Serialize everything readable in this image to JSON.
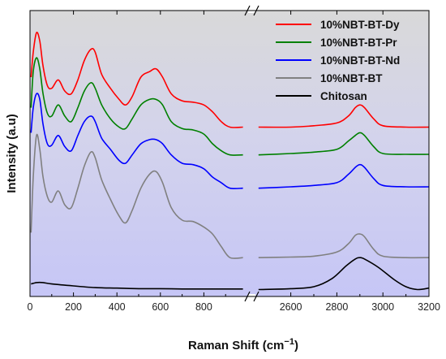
{
  "chart_data": {
    "type": "line",
    "xlabel": "Raman Shift (cm",
    "xlabel_exp": "−1",
    "xlabel_close": ")",
    "ylabel": "Intensity (a.u)",
    "x_break": "//",
    "xlim_left": [
      0,
      1000
    ],
    "xlim_right": [
      2450,
      3200
    ],
    "xticks_left": [
      "0",
      "200",
      "400",
      "600",
      "800"
    ],
    "xtick_values_left": [
      0,
      200,
      400,
      600,
      800
    ],
    "xticks_right": [
      "2600",
      "2800",
      "3000",
      "3200"
    ],
    "xtick_values_right": [
      2600,
      2800,
      3000,
      3200
    ],
    "ylim": [
      -0.3,
      10
    ],
    "y_tick_labels": "none",
    "legend_position": "top-right",
    "series": [
      {
        "name": "10%NBT-BT-Dy",
        "color": "#ff0000",
        "left": [
          [
            5,
            7.6
          ],
          [
            15,
            8.5
          ],
          [
            30,
            9.2
          ],
          [
            45,
            8.9
          ],
          [
            60,
            8.0
          ],
          [
            80,
            7.3
          ],
          [
            100,
            7.2
          ],
          [
            130,
            7.5
          ],
          [
            160,
            7.1
          ],
          [
            190,
            7.0
          ],
          [
            220,
            7.5
          ],
          [
            250,
            8.2
          ],
          [
            280,
            8.6
          ],
          [
            300,
            8.5
          ],
          [
            330,
            7.7
          ],
          [
            370,
            7.2
          ],
          [
            410,
            6.8
          ],
          [
            440,
            6.6
          ],
          [
            470,
            6.9
          ],
          [
            510,
            7.6
          ],
          [
            550,
            7.8
          ],
          [
            580,
            7.9
          ],
          [
            610,
            7.6
          ],
          [
            650,
            7.0
          ],
          [
            700,
            6.75
          ],
          [
            750,
            6.7
          ],
          [
            800,
            6.6
          ],
          [
            840,
            6.35
          ],
          [
            880,
            6.0
          ],
          [
            920,
            5.8
          ],
          [
            980,
            5.8
          ]
        ],
        "right": [
          [
            2460,
            5.8
          ],
          [
            2600,
            5.8
          ],
          [
            2700,
            5.85
          ],
          [
            2800,
            5.95
          ],
          [
            2850,
            6.2
          ],
          [
            2880,
            6.5
          ],
          [
            2900,
            6.6
          ],
          [
            2920,
            6.5
          ],
          [
            2960,
            6.1
          ],
          [
            3000,
            5.85
          ],
          [
            3100,
            5.8
          ],
          [
            3200,
            5.8
          ]
        ]
      },
      {
        "name": "10%NBT-BT-Pr",
        "color": "#008000",
        "left": [
          [
            5,
            6.5
          ],
          [
            15,
            7.8
          ],
          [
            30,
            8.3
          ],
          [
            45,
            7.9
          ],
          [
            60,
            7.0
          ],
          [
            80,
            6.3
          ],
          [
            100,
            6.2
          ],
          [
            130,
            6.6
          ],
          [
            160,
            6.2
          ],
          [
            190,
            6.0
          ],
          [
            220,
            6.5
          ],
          [
            250,
            7.1
          ],
          [
            280,
            7.4
          ],
          [
            300,
            7.2
          ],
          [
            330,
            6.6
          ],
          [
            370,
            6.1
          ],
          [
            410,
            5.8
          ],
          [
            440,
            5.75
          ],
          [
            470,
            6.1
          ],
          [
            510,
            6.6
          ],
          [
            550,
            6.8
          ],
          [
            580,
            6.8
          ],
          [
            610,
            6.6
          ],
          [
            650,
            6.0
          ],
          [
            700,
            5.75
          ],
          [
            750,
            5.7
          ],
          [
            800,
            5.55
          ],
          [
            840,
            5.2
          ],
          [
            880,
            4.95
          ],
          [
            920,
            4.8
          ],
          [
            980,
            4.8
          ]
        ],
        "right": [
          [
            2460,
            4.8
          ],
          [
            2600,
            4.85
          ],
          [
            2700,
            4.9
          ],
          [
            2800,
            5.0
          ],
          [
            2850,
            5.3
          ],
          [
            2880,
            5.5
          ],
          [
            2900,
            5.6
          ],
          [
            2920,
            5.5
          ],
          [
            2960,
            5.1
          ],
          [
            3000,
            4.85
          ],
          [
            3100,
            4.82
          ],
          [
            3200,
            4.82
          ]
        ]
      },
      {
        "name": "10%NBT-BT-Nd",
        "color": "#0000ff",
        "left": [
          [
            5,
            5.6
          ],
          [
            15,
            6.5
          ],
          [
            30,
            7.0
          ],
          [
            45,
            6.8
          ],
          [
            60,
            5.9
          ],
          [
            80,
            5.2
          ],
          [
            100,
            5.15
          ],
          [
            130,
            5.5
          ],
          [
            160,
            5.1
          ],
          [
            190,
            4.95
          ],
          [
            220,
            5.5
          ],
          [
            250,
            6.0
          ],
          [
            280,
            6.2
          ],
          [
            300,
            6.0
          ],
          [
            330,
            5.4
          ],
          [
            370,
            5.0
          ],
          [
            410,
            4.6
          ],
          [
            440,
            4.5
          ],
          [
            470,
            4.8
          ],
          [
            510,
            5.2
          ],
          [
            550,
            5.35
          ],
          [
            580,
            5.35
          ],
          [
            610,
            5.2
          ],
          [
            650,
            4.8
          ],
          [
            700,
            4.5
          ],
          [
            750,
            4.45
          ],
          [
            800,
            4.3
          ],
          [
            840,
            4.0
          ],
          [
            880,
            3.8
          ],
          [
            920,
            3.6
          ],
          [
            980,
            3.6
          ]
        ],
        "right": [
          [
            2460,
            3.6
          ],
          [
            2600,
            3.65
          ],
          [
            2700,
            3.7
          ],
          [
            2800,
            3.8
          ],
          [
            2850,
            4.1
          ],
          [
            2880,
            4.35
          ],
          [
            2900,
            4.45
          ],
          [
            2920,
            4.35
          ],
          [
            2960,
            3.95
          ],
          [
            3000,
            3.7
          ],
          [
            3100,
            3.65
          ],
          [
            3200,
            3.65
          ]
        ]
      },
      {
        "name": "10%NBT-BT",
        "color": "#808080",
        "left": [
          [
            5,
            2.0
          ],
          [
            15,
            4.0
          ],
          [
            30,
            5.5
          ],
          [
            45,
            5.0
          ],
          [
            60,
            4.0
          ],
          [
            80,
            3.3
          ],
          [
            100,
            3.1
          ],
          [
            130,
            3.5
          ],
          [
            160,
            3.0
          ],
          [
            190,
            2.9
          ],
          [
            220,
            3.6
          ],
          [
            250,
            4.4
          ],
          [
            280,
            4.9
          ],
          [
            300,
            4.7
          ],
          [
            330,
            3.9
          ],
          [
            370,
            3.2
          ],
          [
            410,
            2.6
          ],
          [
            440,
            2.35
          ],
          [
            470,
            2.8
          ],
          [
            510,
            3.6
          ],
          [
            550,
            4.1
          ],
          [
            580,
            4.2
          ],
          [
            610,
            3.8
          ],
          [
            650,
            2.9
          ],
          [
            700,
            2.45
          ],
          [
            750,
            2.4
          ],
          [
            800,
            2.2
          ],
          [
            840,
            1.95
          ],
          [
            880,
            1.5
          ],
          [
            920,
            1.1
          ],
          [
            980,
            1.1
          ]
        ],
        "right": [
          [
            2460,
            1.1
          ],
          [
            2600,
            1.12
          ],
          [
            2700,
            1.15
          ],
          [
            2800,
            1.3
          ],
          [
            2850,
            1.6
          ],
          [
            2880,
            1.9
          ],
          [
            2900,
            1.95
          ],
          [
            2920,
            1.85
          ],
          [
            2960,
            1.4
          ],
          [
            3000,
            1.15
          ],
          [
            3100,
            1.1
          ],
          [
            3200,
            1.1
          ]
        ]
      },
      {
        "name": "Chitosan",
        "color": "#000000",
        "left": [
          [
            5,
            0.15
          ],
          [
            30,
            0.2
          ],
          [
            60,
            0.2
          ],
          [
            100,
            0.15
          ],
          [
            200,
            0.08
          ],
          [
            300,
            0.02
          ],
          [
            400,
            0.0
          ],
          [
            500,
            -0.02
          ],
          [
            600,
            -0.02
          ],
          [
            700,
            -0.03
          ],
          [
            800,
            -0.03
          ],
          [
            900,
            -0.03
          ],
          [
            980,
            -0.03
          ]
        ],
        "right": [
          [
            2460,
            -0.05
          ],
          [
            2600,
            -0.02
          ],
          [
            2700,
            0.05
          ],
          [
            2780,
            0.35
          ],
          [
            2840,
            0.8
          ],
          [
            2880,
            1.05
          ],
          [
            2900,
            1.1
          ],
          [
            2920,
            1.05
          ],
          [
            2980,
            0.75
          ],
          [
            3050,
            0.3
          ],
          [
            3100,
            0.05
          ],
          [
            3150,
            -0.05
          ],
          [
            3200,
            0.0
          ]
        ]
      }
    ]
  }
}
